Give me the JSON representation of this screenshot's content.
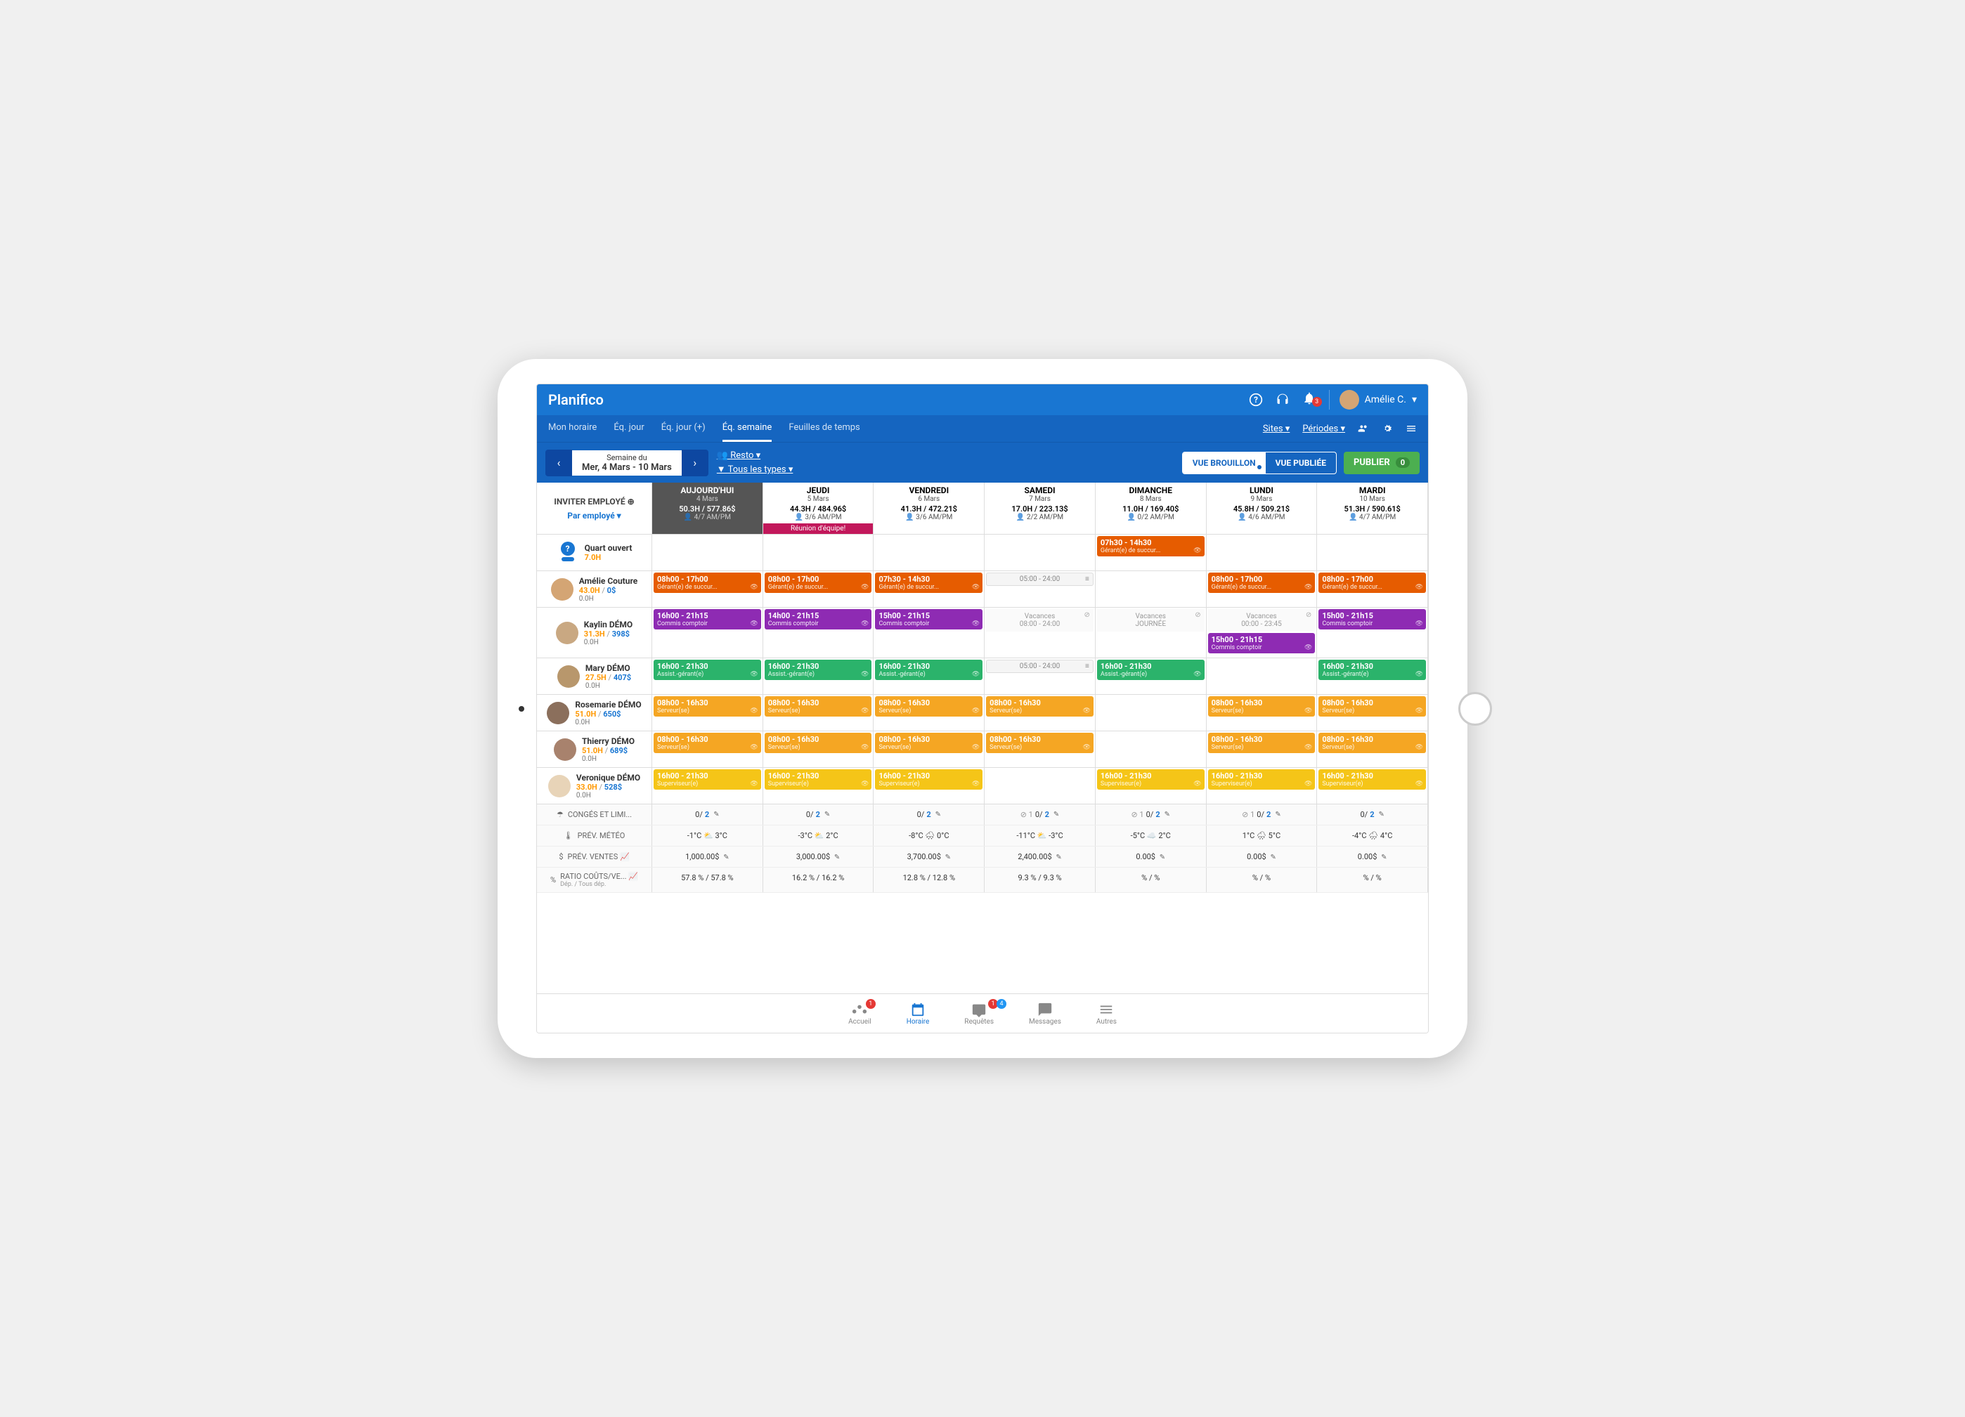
{
  "brand": "Planifico",
  "user": {
    "name": "Amélie C."
  },
  "notifications": 3,
  "nav": {
    "tabs": [
      "Mon horaire",
      "Éq. jour",
      "Éq. jour (+)",
      "Éq. semaine",
      "Feuilles de temps"
    ],
    "active": 3,
    "sites": "Sites",
    "periods": "Périodes"
  },
  "week": {
    "label": "Semaine du",
    "range": "Mer, 4 Mars - 10 Mars"
  },
  "filters": {
    "loc": "Resto",
    "type": "Tous les types"
  },
  "view": {
    "draft": "VUE BROUILLON",
    "pub": "VUE PUBLIÉE"
  },
  "publish": {
    "label": "PUBLIER",
    "count": "0"
  },
  "sidebar": {
    "invite": "INVITER EMPLOYÉ",
    "byemp": "Par employé"
  },
  "colors": {
    "orange": "#e65c00",
    "purple": "#8e2bb3",
    "green": "#2bb36b",
    "amber": "#f5a623",
    "yellow": "#f5c518",
    "today": "#555"
  },
  "days": [
    {
      "name": "AUJOURD'HUI",
      "date": "4 Mars",
      "hours": "50.3H / 577.86$",
      "meta": "4/7 AM/PM",
      "today": true
    },
    {
      "name": "JEUDI",
      "date": "5 Mars",
      "hours": "44.3H / 484.96$",
      "meta": "3/6 AM/PM",
      "team": "Réunion d'équipe!"
    },
    {
      "name": "VENDREDI",
      "date": "6 Mars",
      "hours": "41.3H / 472.21$",
      "meta": "3/6 AM/PM"
    },
    {
      "name": "SAMEDI",
      "date": "7 Mars",
      "hours": "17.0H / 223.13$",
      "meta": "2/2 AM/PM"
    },
    {
      "name": "DIMANCHE",
      "date": "8 Mars",
      "hours": "11.0H / 169.40$",
      "meta": "0/2 AM/PM"
    },
    {
      "name": "LUNDI",
      "date": "9 Mars",
      "hours": "45.8H / 509.21$",
      "meta": "4/6 AM/PM"
    },
    {
      "name": "MARDI",
      "date": "10 Mars",
      "hours": "51.3H / 590.61$",
      "meta": "4/7 AM/PM"
    }
  ],
  "employees": [
    {
      "name": "Quart ouvert",
      "hours": "7.0H",
      "open": true,
      "shifts": [
        null,
        null,
        null,
        null,
        {
          "t": "07h30 - 14h30",
          "r": "Gérant(e) de succur...",
          "c": "orange"
        },
        null,
        null
      ]
    },
    {
      "name": "Amélie Couture",
      "hours": "43.0H",
      "cost": "0$",
      "z": "0.0H",
      "av": "#d4a574",
      "shifts": [
        {
          "t": "08h00 - 17h00",
          "r": "Gérant(e) de succur...",
          "c": "orange"
        },
        {
          "t": "08h00 - 17h00",
          "r": "Gérant(e) de succur...",
          "c": "orange"
        },
        {
          "t": "07h30 - 14h30",
          "r": "Gérant(e) de succur...",
          "c": "orange"
        },
        {
          "avail": "05:00 - 24:00"
        },
        null,
        {
          "t": "08h00 - 17h00",
          "r": "Gérant(e) de succur...",
          "c": "orange"
        },
        {
          "t": "08h00 - 17h00",
          "r": "Gérant(e) de succur...",
          "c": "orange"
        }
      ]
    },
    {
      "name": "Kaylin DÉMO",
      "hours": "31.3H",
      "cost": "398$",
      "z": "0.0H",
      "av": "#c9a882",
      "tall": true,
      "shifts": [
        {
          "t": "16h00 - 21h15",
          "r": "Commis comptoir",
          "c": "purple"
        },
        {
          "t": "14h00 - 21h15",
          "r": "Commis comptoir",
          "c": "purple"
        },
        {
          "t": "15h00 - 21h15",
          "r": "Commis comptoir",
          "c": "purple"
        },
        {
          "vac": "Vacances",
          "sub": "08:00 - 24:00"
        },
        {
          "vac": "Vacances",
          "sub": "JOURNÉE"
        },
        [
          {
            "vac": "Vacances",
            "sub": "00:00 - 23:45"
          },
          {
            "t": "15h00 - 21h15",
            "r": "Commis comptoir",
            "c": "purple"
          }
        ],
        {
          "t": "15h00 - 21h15",
          "r": "Commis comptoir",
          "c": "purple"
        }
      ]
    },
    {
      "name": "Mary DÉMO",
      "hours": "27.5H",
      "cost": "407$",
      "z": "0.0H",
      "av": "#b8976c",
      "shifts": [
        {
          "t": "16h00 - 21h30",
          "r": "Assist.-gérant(e)",
          "c": "green"
        },
        {
          "t": "16h00 - 21h30",
          "r": "Assist.-gérant(e)",
          "c": "green"
        },
        {
          "t": "16h00 - 21h30",
          "r": "Assist.-gérant(e)",
          "c": "green"
        },
        {
          "avail": "05:00 - 24:00"
        },
        {
          "t": "16h00 - 21h30",
          "r": "Assist.-gérant(e)",
          "c": "green"
        },
        null,
        {
          "t": "16h00 - 21h30",
          "r": "Assist.-gérant(e)",
          "c": "green"
        }
      ]
    },
    {
      "name": "Rosemarie DÉMO",
      "hours": "51.0H",
      "cost": "650$",
      "z": "0.0H",
      "av": "#8b6f5c",
      "shifts": [
        {
          "t": "08h00 - 16h30",
          "r": "Serveur(se)",
          "c": "amber"
        },
        {
          "t": "08h00 - 16h30",
          "r": "Serveur(se)",
          "c": "amber"
        },
        {
          "t": "08h00 - 16h30",
          "r": "Serveur(se)",
          "c": "amber"
        },
        {
          "t": "08h00 - 16h30",
          "r": "Serveur(se)",
          "c": "amber"
        },
        null,
        {
          "t": "08h00 - 16h30",
          "r": "Serveur(se)",
          "c": "amber"
        },
        {
          "t": "08h00 - 16h30",
          "r": "Serveur(se)",
          "c": "amber"
        }
      ]
    },
    {
      "name": "Thierry DÉMO",
      "hours": "51.0H",
      "cost": "689$",
      "z": "0.0H",
      "av": "#a8826d",
      "shifts": [
        {
          "t": "08h00 - 16h30",
          "r": "Serveur(se)",
          "c": "amber"
        },
        {
          "t": "08h00 - 16h30",
          "r": "Serveur(se)",
          "c": "amber"
        },
        {
          "t": "08h00 - 16h30",
          "r": "Serveur(se)",
          "c": "amber"
        },
        {
          "t": "08h00 - 16h30",
          "r": "Serveur(se)",
          "c": "amber"
        },
        null,
        {
          "t": "08h00 - 16h30",
          "r": "Serveur(se)",
          "c": "amber"
        },
        {
          "t": "08h00 - 16h30",
          "r": "Serveur(se)",
          "c": "amber"
        }
      ]
    },
    {
      "name": "Veronique DÉMO",
      "hours": "33.0H",
      "cost": "528$",
      "z": "0.0H",
      "av": "#e8d4b8",
      "shifts": [
        {
          "t": "16h00 - 21h30",
          "r": "Superviseur(e)",
          "c": "yellow"
        },
        {
          "t": "16h00 - 21h30",
          "r": "Superviseur(e)",
          "c": "yellow"
        },
        {
          "t": "16h00 - 21h30",
          "r": "Superviseur(e)",
          "c": "yellow"
        },
        null,
        {
          "t": "16h00 - 21h30",
          "r": "Superviseur(e)",
          "c": "yellow"
        },
        {
          "t": "16h00 - 21h30",
          "r": "Superviseur(e)",
          "c": "yellow"
        },
        {
          "t": "16h00 - 21h30",
          "r": "Superviseur(e)",
          "c": "yellow"
        }
      ]
    }
  ],
  "footer": {
    "limits": {
      "label": "CONGÉS ET LIMI...",
      "vals": [
        {
          "a": "0",
          "b": "2"
        },
        {
          "a": "0",
          "b": "2"
        },
        {
          "a": "0",
          "b": "2"
        },
        {
          "a": "0",
          "b": "2",
          "ban": "1"
        },
        {
          "a": "0",
          "b": "2",
          "ban": "1"
        },
        {
          "a": "0",
          "b": "2",
          "ban": "1"
        },
        {
          "a": "0",
          "b": "2"
        }
      ]
    },
    "weather": {
      "label": "PRÉV. MÉTÉO",
      "vals": [
        {
          "lo": "-1°C",
          "hi": "3°C",
          "i": "⛅"
        },
        {
          "lo": "-3°C",
          "hi": "2°C",
          "i": "⛅"
        },
        {
          "lo": "-8°C",
          "hi": "0°C",
          "i": "🌨"
        },
        {
          "lo": "-11°C",
          "hi": "-3°C",
          "i": "⛅"
        },
        {
          "lo": "-5°C",
          "hi": "2°C",
          "i": "☁️"
        },
        {
          "lo": "1°C",
          "hi": "5°C",
          "i": "🌧"
        },
        {
          "lo": "-4°C",
          "hi": "4°C",
          "i": "🌧"
        }
      ]
    },
    "sales": {
      "label": "PRÉV. VENTES",
      "vals": [
        "1,000.00$",
        "3,000.00$",
        "3,700.00$",
        "2,400.00$",
        "0.00$",
        "0.00$",
        "0.00$"
      ]
    },
    "ratio": {
      "label": "RATIO COÛTS/VE...",
      "sub": "Dép. / Tous dép.",
      "vals": [
        "57.8 % / 57.8 %",
        "16.2 % / 16.2 %",
        "12.8 % / 12.8 %",
        "9.3 % / 9.3 %",
        "% / %",
        "% / %",
        "% / %"
      ]
    }
  },
  "bottom": [
    {
      "label": "Accueil",
      "badge": "1"
    },
    {
      "label": "Horaire",
      "active": true
    },
    {
      "label": "Requêtes",
      "badge": "1",
      "badge2": "4"
    },
    {
      "label": "Messages"
    },
    {
      "label": "Autres"
    }
  ]
}
